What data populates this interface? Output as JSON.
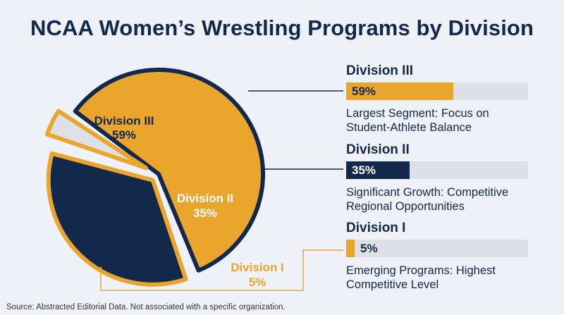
{
  "title": "NCAA Women’s Wrestling Programs by Division",
  "source": "Source: Abstracted Editorial Data. Not associated with a specific organization.",
  "colors": {
    "background": "#eef2f8",
    "navy": "#13294b",
    "gold": "#e9a52c",
    "light": "#dde1e7"
  },
  "chart_data": {
    "type": "pie",
    "title": "NCAA Women’s Wrestling Programs by Division",
    "slices": [
      {
        "label": "Division III",
        "value": 59,
        "value_label": "59%"
      },
      {
        "label": "Division II",
        "value": 35,
        "value_label": "35%"
      },
      {
        "label": "Division I",
        "value": 5,
        "value_label": "5%"
      }
    ]
  },
  "panels": [
    {
      "title": "Division III",
      "value": 59,
      "value_label": "59%",
      "desc_line1": "Largest Segment: Focus on",
      "desc_line2": "Student-Athlete Balance"
    },
    {
      "title": "Division II",
      "value": 35,
      "value_label": "35%",
      "desc_line1": "Significant Growth: Competitive",
      "desc_line2": "Regional Opportunities"
    },
    {
      "title": "Division I",
      "value": 5,
      "value_label": "5%",
      "desc_line1": "Emerging Programs: Highest",
      "desc_line2": "Competitive Level"
    }
  ]
}
